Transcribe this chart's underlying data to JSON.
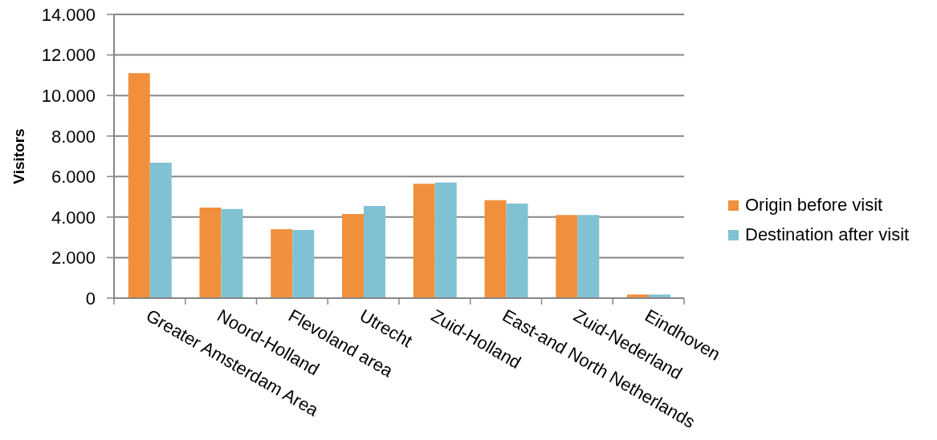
{
  "chart_data": {
    "type": "bar",
    "ylabel": "Visitors",
    "categories": [
      "Greater Amsterdam Area",
      "Noord-Holland",
      "Flevoland area",
      "Utrecht",
      "Zuid-Holland",
      "East-and North Netherlands",
      "Zuid-Nederland",
      "Eindhoven"
    ],
    "series": [
      {
        "name": "Origin before visit",
        "color": "#f0903c",
        "values": [
          11100,
          4470,
          3400,
          4150,
          5650,
          4830,
          4100,
          180
        ]
      },
      {
        "name": "Destination after visit",
        "color": "#80c2d4",
        "values": [
          6680,
          4400,
          3360,
          4550,
          5700,
          4670,
          4100,
          180
        ]
      }
    ],
    "ylim": [
      0,
      14000
    ],
    "yticks": [
      0,
      {
        "value": 2000,
        "label": "2.000"
      },
      {
        "value": 4000,
        "label": "4.000"
      },
      {
        "value": 6000,
        "label": "6.000"
      },
      {
        "value": 8000,
        "label": "8.000"
      },
      {
        "value": 10000,
        "label": "10.000"
      },
      {
        "value": 12000,
        "label": "12.000"
      },
      {
        "value": 14000,
        "label": "14.000"
      }
    ],
    "grid": "y",
    "legend": "right"
  }
}
